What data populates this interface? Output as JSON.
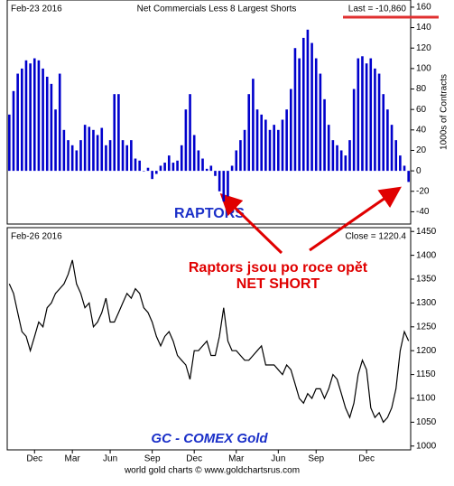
{
  "chart_data": [
    {
      "type": "bar",
      "title": "Net Commercials Less 8 Largest Shorts",
      "date": "Feb-23 2016",
      "last": "Last = -10,860",
      "ylabel": "1000s of Contracts",
      "color": "#0000cc",
      "values": [
        55,
        78,
        95,
        100,
        108,
        105,
        110,
        108,
        100,
        92,
        85,
        60,
        95,
        40,
        30,
        25,
        20,
        30,
        45,
        43,
        40,
        35,
        42,
        25,
        30,
        75,
        75,
        30,
        25,
        30,
        12,
        10,
        0,
        3,
        -8,
        -3,
        5,
        8,
        15,
        8,
        10,
        25,
        60,
        75,
        35,
        20,
        12,
        2,
        5,
        -5,
        -20,
        -30,
        -25,
        5,
        20,
        30,
        40,
        75,
        90,
        60,
        55,
        50,
        40,
        45,
        40,
        50,
        60,
        80,
        120,
        110,
        130,
        138,
        125,
        110,
        95,
        70,
        45,
        30,
        25,
        20,
        15,
        30,
        80,
        110,
        112,
        105,
        110,
        100,
        95,
        75,
        60,
        45,
        30,
        15,
        5,
        -10.86
      ],
      "ylim": [
        -52,
        167
      ],
      "yticks": [
        -40,
        -20,
        0,
        20,
        40,
        60,
        80,
        100,
        120,
        140,
        160
      ],
      "grid": false
    },
    {
      "type": "line",
      "date": "Feb-26 2016",
      "last": "Close = 1220.4",
      "color": "#000000",
      "values": [
        1340,
        1320,
        1280,
        1240,
        1230,
        1200,
        1230,
        1260,
        1250,
        1290,
        1300,
        1320,
        1330,
        1340,
        1360,
        1390,
        1340,
        1320,
        1290,
        1300,
        1250,
        1260,
        1280,
        1310,
        1260,
        1260,
        1280,
        1300,
        1320,
        1310,
        1330,
        1320,
        1290,
        1280,
        1260,
        1230,
        1210,
        1230,
        1240,
        1220,
        1190,
        1180,
        1170,
        1140,
        1200,
        1200,
        1210,
        1220,
        1190,
        1190,
        1230,
        1290,
        1220,
        1200,
        1200,
        1190,
        1180,
        1180,
        1190,
        1200,
        1210,
        1170,
        1170,
        1170,
        1160,
        1150,
        1170,
        1160,
        1130,
        1100,
        1090,
        1110,
        1100,
        1120,
        1120,
        1100,
        1120,
        1150,
        1140,
        1110,
        1080,
        1060,
        1090,
        1150,
        1180,
        1160,
        1080,
        1060,
        1070,
        1050,
        1060,
        1080,
        1120,
        1200,
        1240,
        1220.4
      ],
      "ylim": [
        992,
        1458
      ],
      "yticks": [
        1000,
        1050,
        1100,
        1150,
        1200,
        1250,
        1300,
        1350,
        1400,
        1450
      ],
      "xticks": [
        {
          "value": 6,
          "label": "Dec"
        },
        {
          "value": 15,
          "label": "Mar"
        },
        {
          "value": 24,
          "label": "Jun"
        },
        {
          "value": 34,
          "label": "Sep"
        },
        {
          "value": 44,
          "label": "Dec"
        },
        {
          "value": 54,
          "label": "Mar"
        },
        {
          "value": 64,
          "label": "Jun"
        },
        {
          "value": 73,
          "label": "Sep"
        },
        {
          "value": 85,
          "label": "Dec"
        }
      ],
      "grid": false
    }
  ],
  "annotations": {
    "raptors": "RAPTORS",
    "note": [
      "Raptors jsou po roce opět",
      "NET SHORT"
    ],
    "gold": "GC - COMEX Gold",
    "footer": "world gold charts © www.goldchartsrus.com"
  }
}
